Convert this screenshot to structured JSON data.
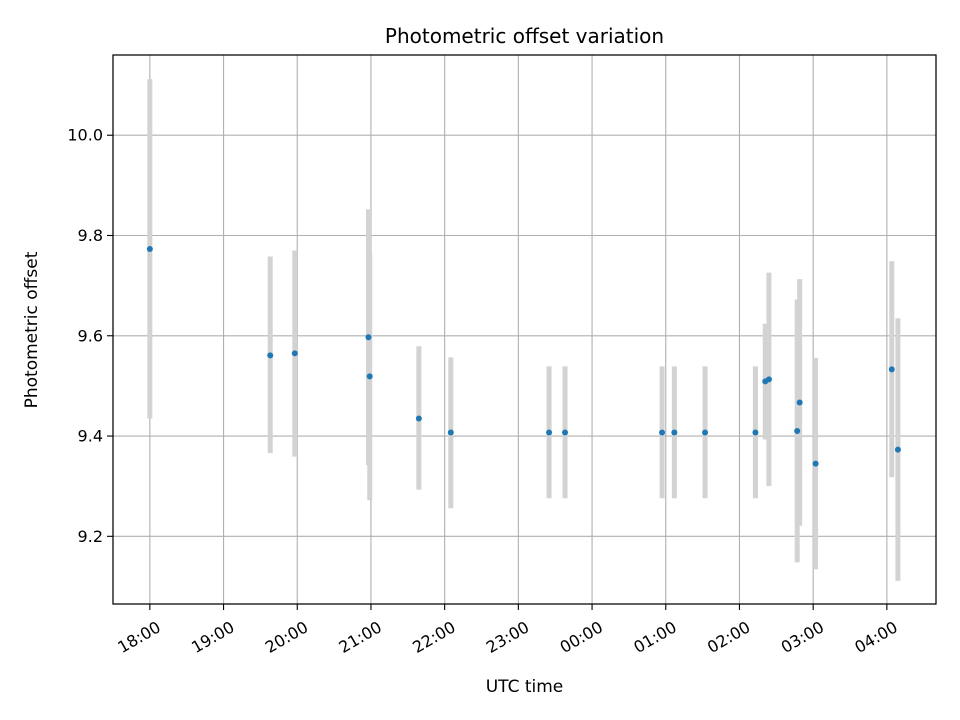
{
  "chart_data": {
    "type": "scatter",
    "title": "Photometric offset variation",
    "xlabel": "UTC time",
    "ylabel": "Photometric offset",
    "x_axis_type": "time",
    "x_start_date": "2024-01-01",
    "xlim": [
      "2024-01-01 17:30",
      "2024-01-02 04:40"
    ],
    "ylim": [
      9.065,
      10.16
    ],
    "x_ticks": [
      "18:00",
      "19:00",
      "20:00",
      "21:00",
      "22:00",
      "23:00",
      "00:00",
      "01:00",
      "02:00",
      "03:00",
      "04:00"
    ],
    "y_ticks": [
      9.2,
      9.4,
      9.6,
      9.8,
      10.0
    ],
    "y_tick_labels": [
      "9.2",
      "9.4",
      "9.6",
      "9.8",
      "10.0"
    ],
    "grid": true,
    "colors": {
      "point": "#1f77b4",
      "errorbar": "#d3d3d3",
      "grid": "#b0b0b0"
    },
    "points": [
      {
        "time": "2024-01-01 18:00",
        "y": 9.773,
        "err_low": 9.435,
        "err_high": 10.112
      },
      {
        "time": "2024-01-01 19:38",
        "y": 9.561,
        "err_low": 9.366,
        "err_high": 9.758
      },
      {
        "time": "2024-01-01 19:58",
        "y": 9.565,
        "err_low": 9.359,
        "err_high": 9.77
      },
      {
        "time": "2024-01-01 20:58",
        "y": 9.597,
        "err_low": 9.342,
        "err_high": 9.852
      },
      {
        "time": "2024-01-01 20:59",
        "y": 9.519,
        "err_low": 9.272,
        "err_high": 9.766
      },
      {
        "time": "2024-01-01 21:39",
        "y": 9.435,
        "err_low": 9.293,
        "err_high": 9.579
      },
      {
        "time": "2024-01-01 22:05",
        "y": 9.407,
        "err_low": 9.256,
        "err_high": 9.557
      },
      {
        "time": "2024-01-01 23:25",
        "y": 9.407,
        "err_low": 9.276,
        "err_high": 9.539
      },
      {
        "time": "2024-01-01 23:38",
        "y": 9.407,
        "err_low": 9.276,
        "err_high": 9.539
      },
      {
        "time": "2024-01-02 00:57",
        "y": 9.407,
        "err_low": 9.276,
        "err_high": 9.539
      },
      {
        "time": "2024-01-02 01:07",
        "y": 9.407,
        "err_low": 9.276,
        "err_high": 9.539
      },
      {
        "time": "2024-01-02 01:32",
        "y": 9.407,
        "err_low": 9.276,
        "err_high": 9.539
      },
      {
        "time": "2024-01-02 02:13",
        "y": 9.407,
        "err_low": 9.276,
        "err_high": 9.539
      },
      {
        "time": "2024-01-02 02:21",
        "y": 9.509,
        "err_low": 9.393,
        "err_high": 9.624
      },
      {
        "time": "2024-01-02 02:24",
        "y": 9.513,
        "err_low": 9.3,
        "err_high": 9.726
      },
      {
        "time": "2024-01-02 02:47",
        "y": 9.41,
        "err_low": 9.148,
        "err_high": 9.672
      },
      {
        "time": "2024-01-02 02:49",
        "y": 9.467,
        "err_low": 9.221,
        "err_high": 9.713
      },
      {
        "time": "2024-01-02 03:02",
        "y": 9.345,
        "err_low": 9.134,
        "err_high": 9.556
      },
      {
        "time": "2024-01-02 04:04",
        "y": 9.533,
        "err_low": 9.318,
        "err_high": 9.749
      },
      {
        "time": "2024-01-02 04:09",
        "y": 9.373,
        "err_low": 9.111,
        "err_high": 9.635
      }
    ]
  }
}
